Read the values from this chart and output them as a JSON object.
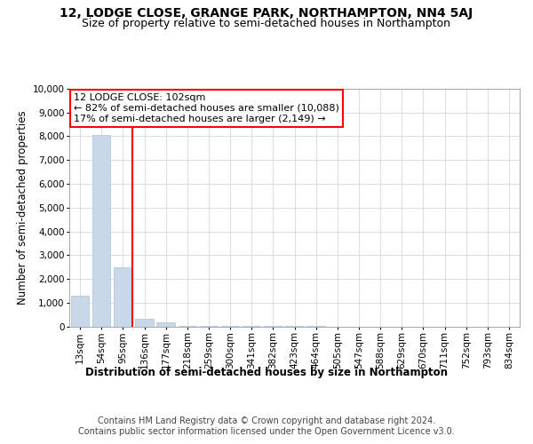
{
  "title": "12, LODGE CLOSE, GRANGE PARK, NORTHAMPTON, NN4 5AJ",
  "subtitle": "Size of property relative to semi-detached houses in Northampton",
  "xlabel": "Distribution of semi-detached houses by size in Northampton",
  "ylabel": "Number of semi-detached properties",
  "footer1": "Contains HM Land Registry data © Crown copyright and database right 2024.",
  "footer2": "Contains public sector information licensed under the Open Government Licence v3.0.",
  "annotation_title": "12 LODGE CLOSE: 102sqm",
  "annotation_line1": "← 82% of semi-detached houses are smaller (10,088)",
  "annotation_line2": "17% of semi-detached houses are larger (2,149) →",
  "property_bin_index": 2,
  "categories": [
    "13sqm",
    "54sqm",
    "95sqm",
    "136sqm",
    "177sqm",
    "218sqm",
    "259sqm",
    "300sqm",
    "341sqm",
    "382sqm",
    "423sqm",
    "464sqm",
    "505sqm",
    "547sqm",
    "588sqm",
    "629sqm",
    "670sqm",
    "711sqm",
    "752sqm",
    "793sqm",
    "834sqm"
  ],
  "values": [
    1300,
    8050,
    2500,
    300,
    150,
    30,
    10,
    5,
    3,
    2,
    1,
    1,
    0,
    0,
    0,
    0,
    0,
    0,
    0,
    0,
    0
  ],
  "bar_color": "#c8d8e8",
  "red_line_x": 2,
  "ylim": [
    0,
    10000
  ],
  "yticks": [
    0,
    1000,
    2000,
    3000,
    4000,
    5000,
    6000,
    7000,
    8000,
    9000,
    10000
  ],
  "background_color": "#ffffff",
  "grid_color": "#d0d8e0",
  "title_fontsize": 10,
  "subtitle_fontsize": 9,
  "axis_label_fontsize": 8.5,
  "tick_fontsize": 7.5,
  "footer_fontsize": 7,
  "annotation_fontsize": 8
}
